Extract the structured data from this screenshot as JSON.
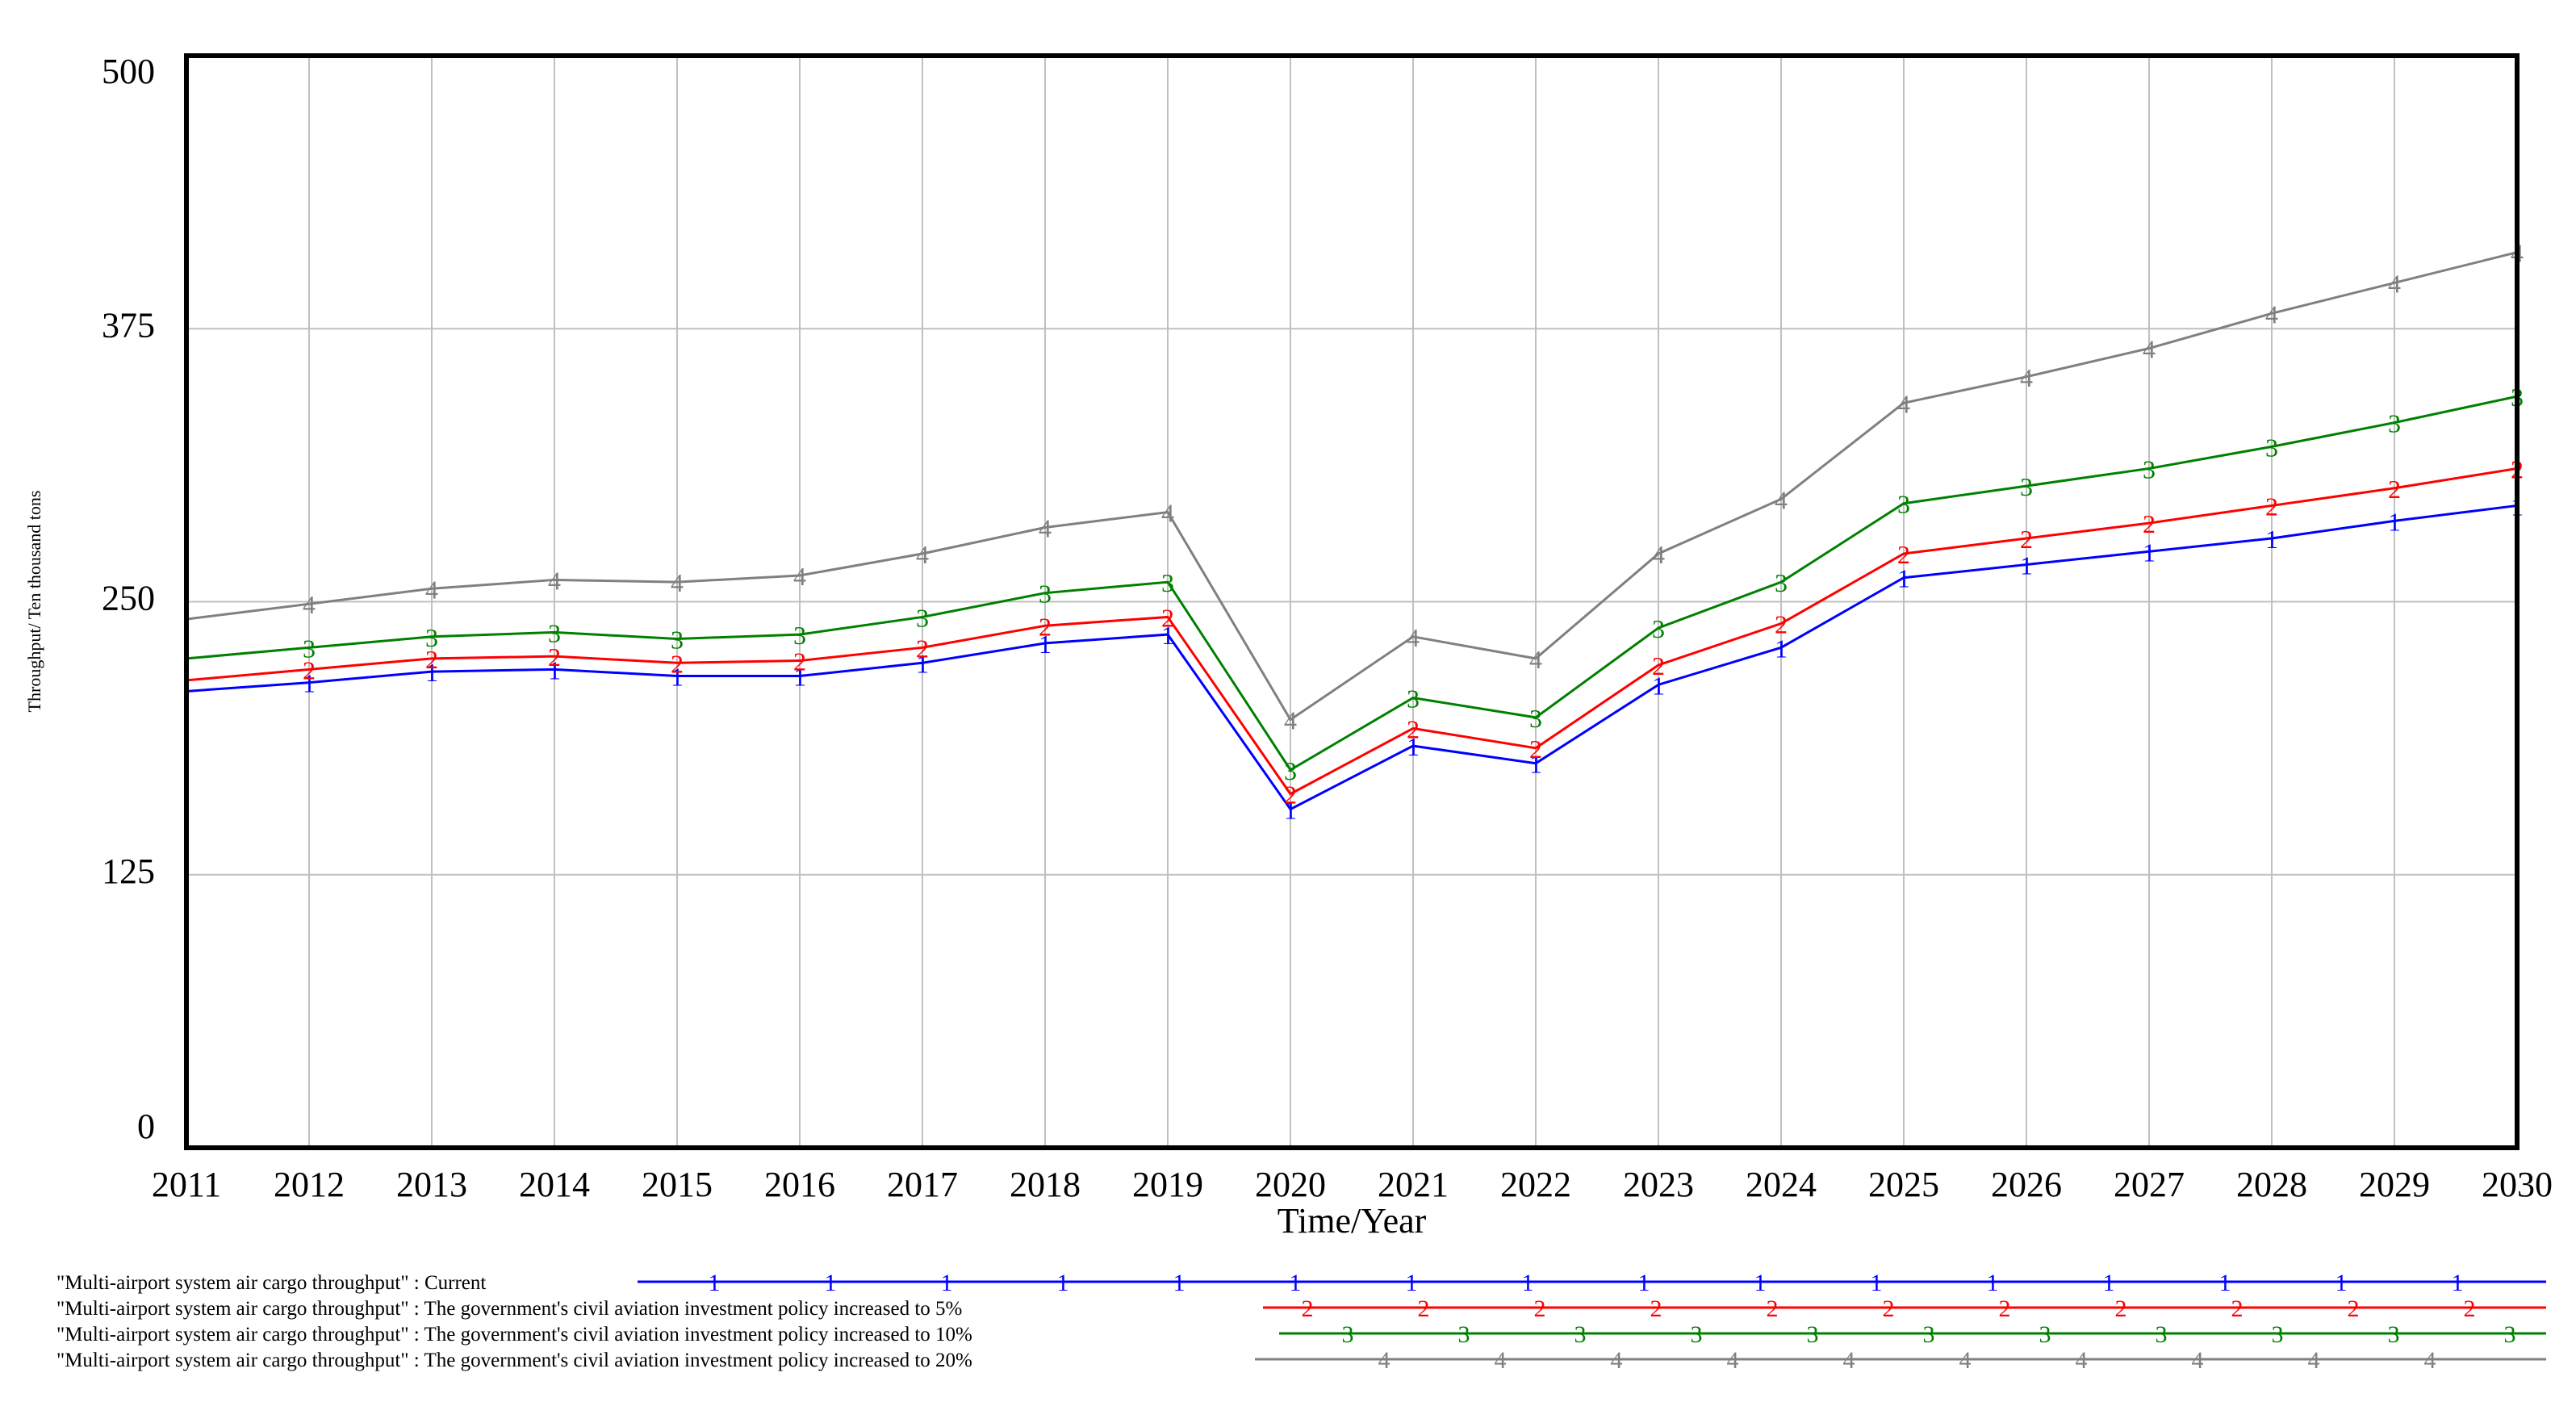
{
  "chart_data": {
    "type": "line",
    "title": "",
    "xlabel": "Time/Year",
    "ylabel": "Throughput/ Ten thousand tons",
    "x": [
      "2011",
      "2012",
      "2013",
      "2014",
      "2015",
      "2016",
      "2017",
      "2018",
      "2019",
      "2020",
      "2021",
      "2022",
      "2023",
      "2024",
      "2025",
      "2026",
      "2027",
      "2028",
      "2029",
      "2030"
    ],
    "yticks": [
      "0",
      "125",
      "250",
      "375",
      "500"
    ],
    "ylim": [
      0,
      500
    ],
    "grid": true,
    "legend_position": "bottom",
    "series": [
      {
        "name": "\"Multi-airport system air cargo throughput\" : Current",
        "marker": "1",
        "color": "#0000ff",
        "values": [
          209,
          213,
          218,
          219,
          216,
          216,
          222,
          231,
          235,
          155,
          184,
          176,
          212,
          229,
          261,
          267,
          273,
          279,
          287,
          294
        ]
      },
      {
        "name": "\"Multi-airport system air cargo throughput\" : The government's civil aviation investment policy increased to 5%",
        "marker": "2",
        "color": "#ff0000",
        "values": [
          214,
          219,
          224,
          225,
          222,
          223,
          229,
          239,
          243,
          162,
          192,
          183,
          221,
          240,
          272,
          279,
          286,
          294,
          302,
          311
        ]
      },
      {
        "name": "\"Multi-airport system air cargo throughput\" : The government's civil aviation investment policy increased to 10%",
        "marker": "3",
        "color": "#008000",
        "values": [
          224,
          229,
          234,
          236,
          233,
          235,
          243,
          254,
          259,
          173,
          206,
          197,
          238,
          259,
          295,
          303,
          311,
          321,
          332,
          344
        ]
      },
      {
        "name": "\"Multi-airport system air cargo throughput\" : The government's civil aviation investment policy increased to 20%",
        "marker": "4",
        "color": "#808080",
        "values": [
          242,
          249,
          256,
          260,
          259,
          262,
          272,
          284,
          291,
          196,
          234,
          224,
          272,
          297,
          341,
          353,
          366,
          382,
          396,
          410
        ]
      }
    ]
  }
}
